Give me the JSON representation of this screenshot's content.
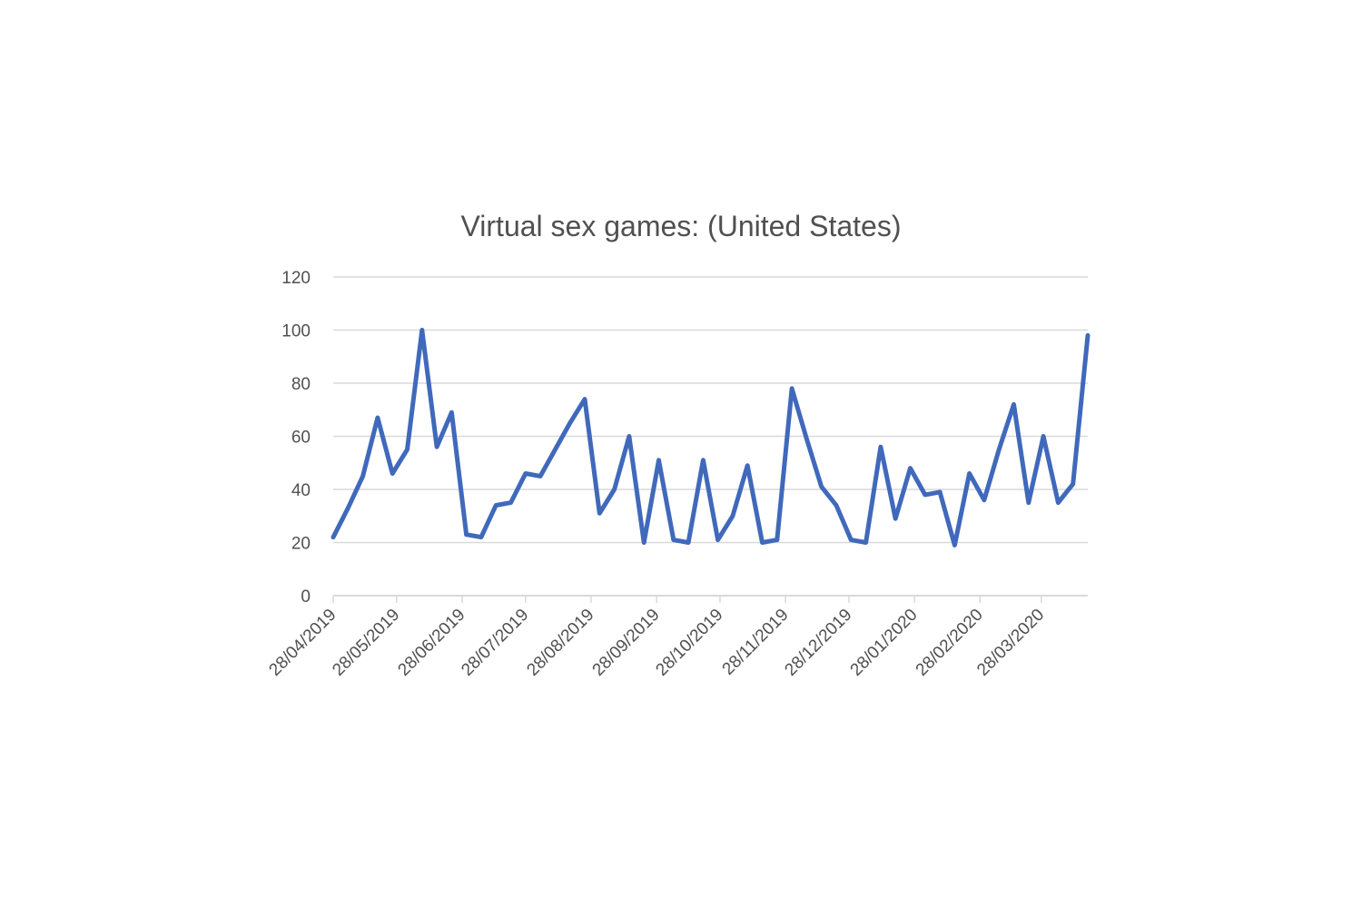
{
  "chart_data": {
    "type": "line",
    "title": "Virtual sex games: (United States)",
    "xlabel": "",
    "ylabel": "",
    "ylim": [
      0,
      120
    ],
    "yticks": [
      0,
      20,
      40,
      60,
      80,
      100,
      120
    ],
    "grid": true,
    "legend": "none",
    "x_start": "28/04/2019",
    "x_interval": "weekly",
    "x_tick_labels": [
      "28/04/2019",
      "28/05/2019",
      "28/06/2019",
      "28/07/2019",
      "28/08/2019",
      "28/09/2019",
      "28/10/2019",
      "28/11/2019",
      "28/12/2019",
      "28/01/2020",
      "28/02/2020",
      "28/03/2020"
    ],
    "x_tick_day_offsets": [
      0,
      30,
      61,
      91,
      122,
      153,
      183,
      214,
      244,
      275,
      306,
      335
    ],
    "series": [
      {
        "name": "Virtual sex games: (United States)",
        "color": "#4069BB",
        "values": [
          22,
          33,
          45,
          67,
          46,
          55,
          100,
          56,
          69,
          23,
          22,
          34,
          35,
          46,
          45,
          55,
          65,
          74,
          31,
          40,
          60,
          20,
          51,
          21,
          20,
          51,
          21,
          30,
          49,
          20,
          21,
          78,
          59,
          41,
          34,
          21,
          20,
          56,
          29,
          48,
          38,
          39,
          19,
          46,
          36,
          55,
          72,
          35,
          60,
          35,
          42,
          98
        ]
      }
    ]
  }
}
